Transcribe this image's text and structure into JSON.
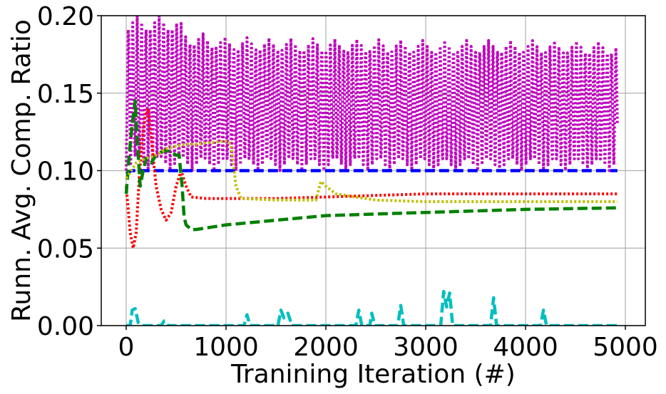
{
  "chart_data": {
    "type": "line",
    "xlabel": "Tranining Iteration (#)",
    "ylabel": "Runn. Avg. Comp. Ratio",
    "xlim": [
      -250,
      5200
    ],
    "ylim": [
      0.0,
      0.2
    ],
    "xticks": [
      0,
      1000,
      2000,
      3000,
      4000,
      5000
    ],
    "xtick_labels": [
      "0",
      "1000",
      "2000",
      "3000",
      "4000",
      "5000"
    ],
    "yticks": [
      0.0,
      0.05,
      0.1,
      0.15,
      0.2
    ],
    "ytick_labels": [
      "0.00",
      "0.05",
      "0.10",
      "0.15",
      "0.20"
    ],
    "grid": true,
    "legend": "none",
    "series": [
      {
        "color": "#bf00bf",
        "style": "dotted",
        "pattern": "oscillating band",
        "band_upper": [
          [
            0,
            0.2
          ],
          [
            500,
            0.2
          ],
          [
            600,
            0.19
          ],
          [
            1000,
            0.186
          ],
          [
            2000,
            0.185
          ],
          [
            3000,
            0.184
          ],
          [
            4000,
            0.184
          ],
          [
            4920,
            0.183
          ]
        ],
        "band_lower": [
          [
            0,
            0.1
          ],
          [
            1000,
            0.1
          ],
          [
            2000,
            0.1
          ],
          [
            3000,
            0.1
          ],
          [
            4000,
            0.1
          ],
          [
            4920,
            0.1
          ]
        ]
      },
      {
        "color": "#0000ff",
        "style": "dashed",
        "points": [
          [
            0,
            0.098
          ],
          [
            50,
            0.1
          ],
          [
            200,
            0.1
          ],
          [
            1000,
            0.1
          ],
          [
            2000,
            0.1
          ],
          [
            3000,
            0.1
          ],
          [
            4000,
            0.1
          ],
          [
            4920,
            0.1
          ]
        ]
      },
      {
        "color": "#ff0000",
        "style": "dotted",
        "points": [
          [
            0,
            0.09
          ],
          [
            40,
            0.06
          ],
          [
            70,
            0.05
          ],
          [
            100,
            0.06
          ],
          [
            130,
            0.095
          ],
          [
            160,
            0.12
          ],
          [
            190,
            0.135
          ],
          [
            220,
            0.14
          ],
          [
            260,
            0.115
          ],
          [
            300,
            0.09
          ],
          [
            350,
            0.075
          ],
          [
            400,
            0.068
          ],
          [
            450,
            0.073
          ],
          [
            500,
            0.09
          ],
          [
            550,
            0.1
          ],
          [
            600,
            0.09
          ],
          [
            650,
            0.083
          ],
          [
            800,
            0.082
          ],
          [
            1000,
            0.082
          ],
          [
            1500,
            0.082
          ],
          [
            2000,
            0.083
          ],
          [
            2500,
            0.084
          ],
          [
            3000,
            0.085
          ],
          [
            4000,
            0.085
          ],
          [
            4920,
            0.085
          ]
        ]
      },
      {
        "color": "#008000",
        "style": "dashed",
        "points": [
          [
            0,
            0.085
          ],
          [
            30,
            0.11
          ],
          [
            60,
            0.13
          ],
          [
            90,
            0.145
          ],
          [
            110,
            0.12
          ],
          [
            140,
            0.09
          ],
          [
            170,
            0.1
          ],
          [
            200,
            0.108
          ],
          [
            250,
            0.105
          ],
          [
            300,
            0.11
          ],
          [
            350,
            0.112
          ],
          [
            400,
            0.113
          ],
          [
            450,
            0.112
          ],
          [
            500,
            0.11
          ],
          [
            530,
            0.11
          ],
          [
            560,
            0.09
          ],
          [
            580,
            0.07
          ],
          [
            600,
            0.065
          ],
          [
            650,
            0.062
          ],
          [
            700,
            0.062
          ],
          [
            800,
            0.063
          ],
          [
            1000,
            0.065
          ],
          [
            1500,
            0.068
          ],
          [
            2000,
            0.071
          ],
          [
            3000,
            0.073
          ],
          [
            4000,
            0.075
          ],
          [
            4920,
            0.076
          ]
        ]
      },
      {
        "color": "#bfbf00",
        "style": "dotted",
        "points": [
          [
            0,
            0.095
          ],
          [
            50,
            0.1
          ],
          [
            100,
            0.105
          ],
          [
            200,
            0.108
          ],
          [
            300,
            0.11
          ],
          [
            400,
            0.114
          ],
          [
            500,
            0.116
          ],
          [
            600,
            0.117
          ],
          [
            700,
            0.117
          ],
          [
            800,
            0.118
          ],
          [
            1000,
            0.119
          ],
          [
            1050,
            0.117
          ],
          [
            1100,
            0.09
          ],
          [
            1150,
            0.082
          ],
          [
            1500,
            0.081
          ],
          [
            1900,
            0.081
          ],
          [
            1950,
            0.093
          ],
          [
            2000,
            0.09
          ],
          [
            2100,
            0.085
          ],
          [
            2500,
            0.081
          ],
          [
            3000,
            0.08
          ],
          [
            4000,
            0.08
          ],
          [
            4920,
            0.08
          ]
        ]
      },
      {
        "color": "#00bfbf",
        "style": "dashed",
        "points": [
          [
            0,
            0.0
          ],
          [
            40,
            0.0
          ],
          [
            60,
            0.01
          ],
          [
            90,
            0.011
          ],
          [
            120,
            0.002
          ],
          [
            160,
            0.0
          ],
          [
            350,
            0.0
          ],
          [
            380,
            0.003
          ],
          [
            420,
            0.0
          ],
          [
            1180,
            0.0
          ],
          [
            1210,
            0.007
          ],
          [
            1240,
            0.0
          ],
          [
            1520,
            0.0
          ],
          [
            1550,
            0.01
          ],
          [
            1580,
            0.005
          ],
          [
            1620,
            0.008
          ],
          [
            1660,
            0.0
          ],
          [
            2300,
            0.0
          ],
          [
            2330,
            0.01
          ],
          [
            2360,
            0.0
          ],
          [
            2440,
            0.0
          ],
          [
            2460,
            0.008
          ],
          [
            2490,
            0.0
          ],
          [
            2720,
            0.0
          ],
          [
            2750,
            0.013
          ],
          [
            2780,
            0.0
          ],
          [
            3150,
            0.0
          ],
          [
            3180,
            0.022
          ],
          [
            3210,
            0.012
          ],
          [
            3240,
            0.021
          ],
          [
            3270,
            0.0
          ],
          [
            3650,
            0.0
          ],
          [
            3680,
            0.018
          ],
          [
            3710,
            0.0
          ],
          [
            4150,
            0.0
          ],
          [
            4180,
            0.01
          ],
          [
            4210,
            0.0
          ],
          [
            4920,
            0.0
          ]
        ]
      }
    ]
  }
}
